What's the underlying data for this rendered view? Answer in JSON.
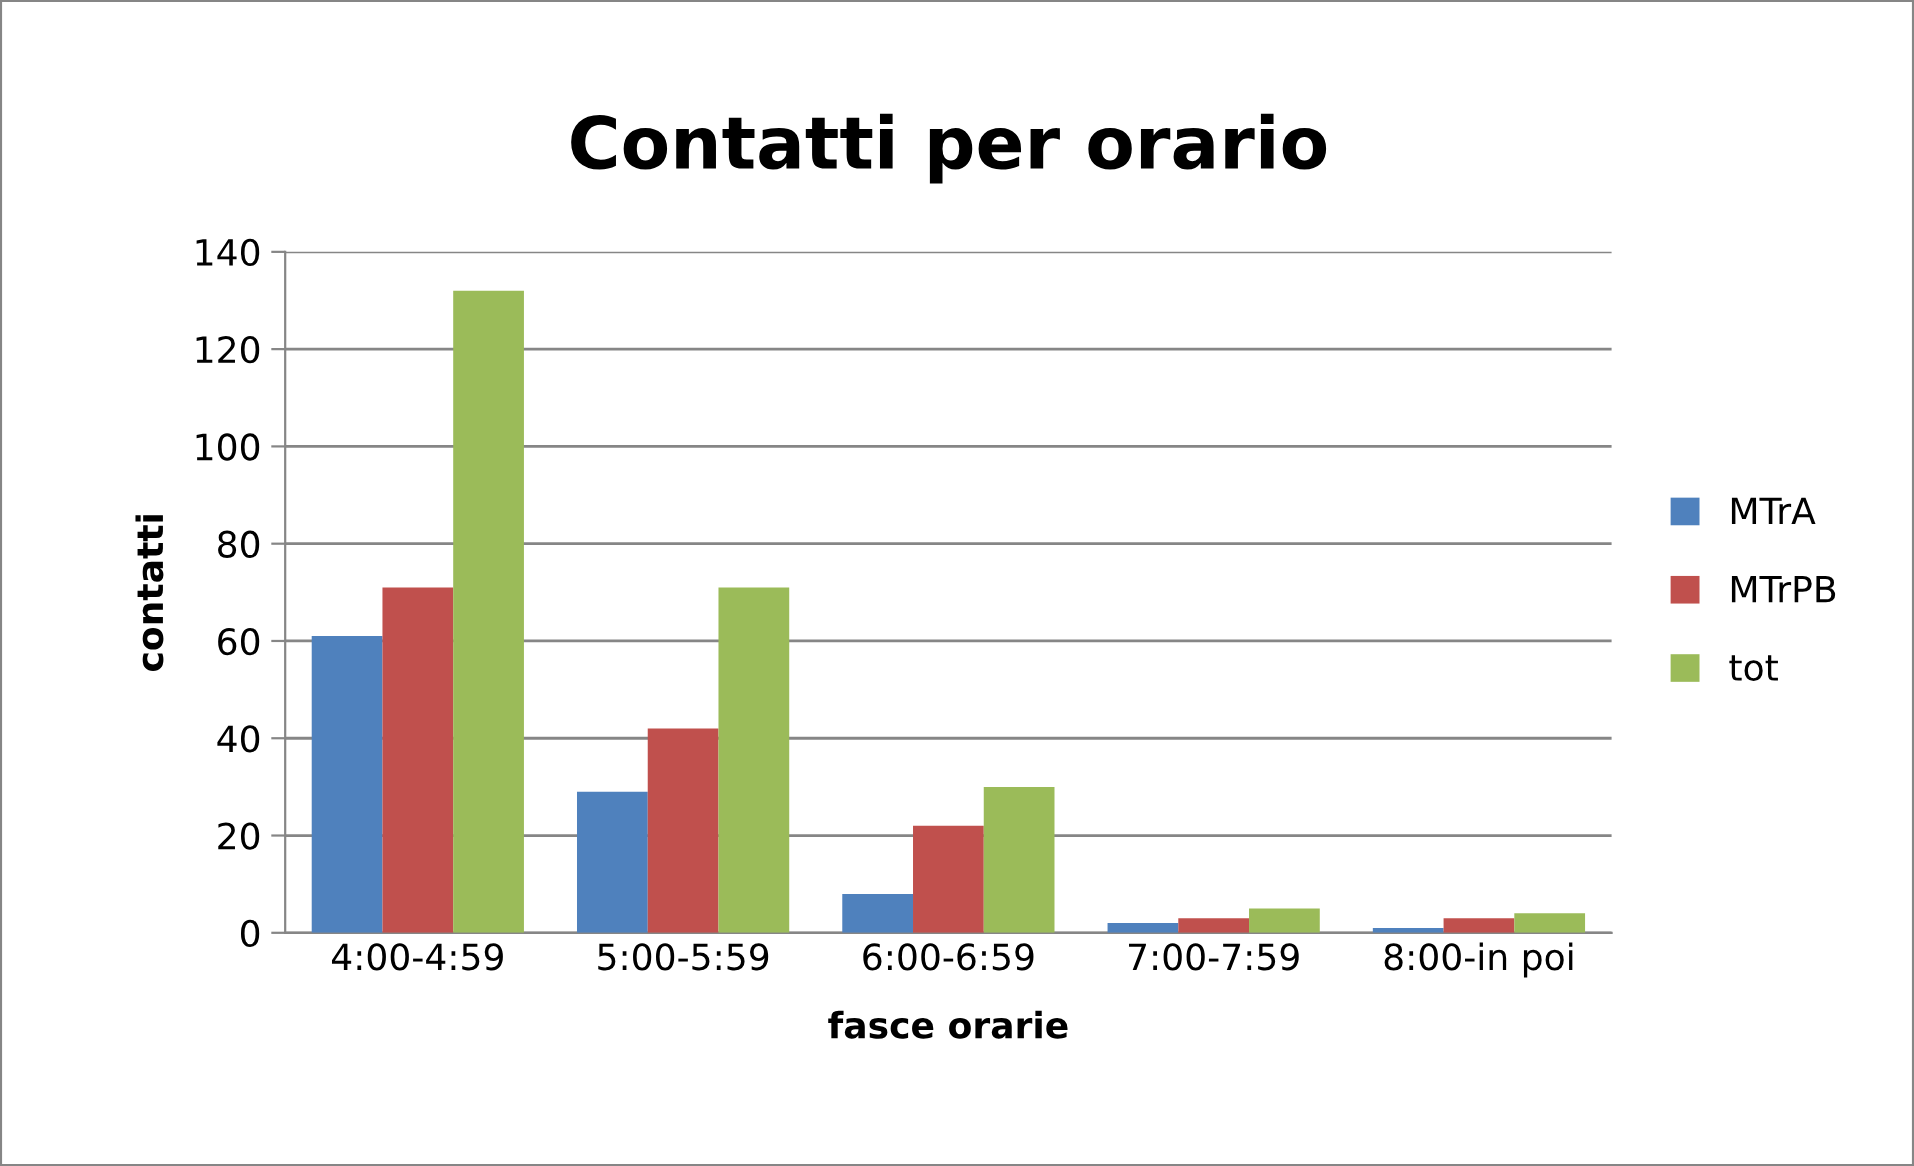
{
  "chart_data": {
    "type": "bar",
    "title": "Contatti per orario",
    "xlabel": "fasce orarie",
    "ylabel": "contatti",
    "categories": [
      "4:00-4:59",
      "5:00-5:59",
      "6:00-6:59",
      "7:00-7:59",
      "8:00-in poi"
    ],
    "series": [
      {
        "name": "MTrA",
        "color": "#4f81bd",
        "values": [
          61,
          29,
          8,
          2,
          1
        ]
      },
      {
        "name": "MTrPB",
        "color": "#c0504d",
        "values": [
          71,
          42,
          22,
          3,
          3
        ]
      },
      {
        "name": "tot",
        "color": "#9bbb59",
        "values": [
          132,
          71,
          30,
          5,
          4
        ]
      }
    ],
    "ylim": [
      0,
      140
    ],
    "yticks": [
      0,
      20,
      40,
      60,
      80,
      100,
      120,
      140
    ],
    "grid": "y",
    "legend": "right"
  }
}
